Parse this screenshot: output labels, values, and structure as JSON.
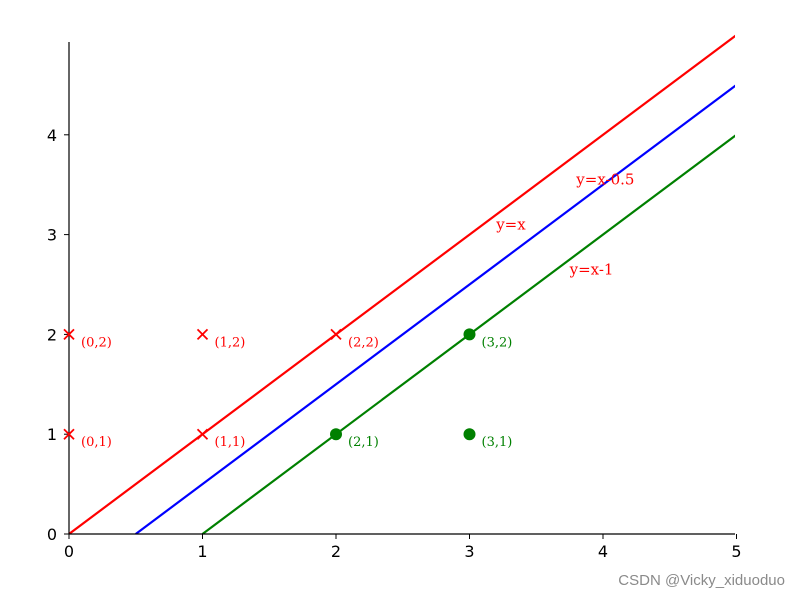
{
  "chart_data": {
    "type": "line",
    "xlim": [
      0,
      5
    ],
    "ylim": [
      0,
      5
    ],
    "x_ticks": [
      "0",
      "1",
      "2",
      "3",
      "4",
      "5"
    ],
    "y_ticks": [
      "0",
      "1",
      "2",
      "3",
      "4"
    ],
    "grid": false,
    "series": [
      {
        "kind": "line",
        "name": "y=x",
        "color": "#ff0000",
        "x": [
          0,
          5
        ],
        "y": [
          0,
          5
        ],
        "label_at": [
          3.2,
          3.05
        ]
      },
      {
        "kind": "line",
        "name": "y=x-0.5",
        "color": "#0000ff",
        "x": [
          0.5,
          5
        ],
        "y": [
          0,
          4.5
        ],
        "label_at": [
          3.8,
          3.5
        ],
        "label_color": "#ff0000"
      },
      {
        "kind": "line",
        "name": "y=x-1",
        "color": "#008000",
        "x": [
          1,
          5
        ],
        "y": [
          0,
          4
        ],
        "label_at": [
          3.75,
          2.6
        ],
        "label_color": "#ff0000"
      },
      {
        "kind": "scatter",
        "marker": "x",
        "color": "#ff0000",
        "points": [
          {
            "x": 0,
            "y": 2,
            "label": "(0,2)"
          },
          {
            "x": 1,
            "y": 2,
            "label": "(1,2)"
          },
          {
            "x": 2,
            "y": 2,
            "label": "(2,2)"
          },
          {
            "x": 0,
            "y": 1,
            "label": "(0,1)"
          },
          {
            "x": 1,
            "y": 1,
            "label": "(1,1)"
          }
        ]
      },
      {
        "kind": "scatter",
        "marker": "circle",
        "color": "#008000",
        "points": [
          {
            "x": 2,
            "y": 1,
            "label": "(2,1)"
          },
          {
            "x": 3,
            "y": 2,
            "label": "(3,2)"
          },
          {
            "x": 3,
            "y": 1,
            "label": "(3,1)"
          }
        ]
      }
    ]
  },
  "watermark": "CSDN @Vicky_xiduoduo"
}
